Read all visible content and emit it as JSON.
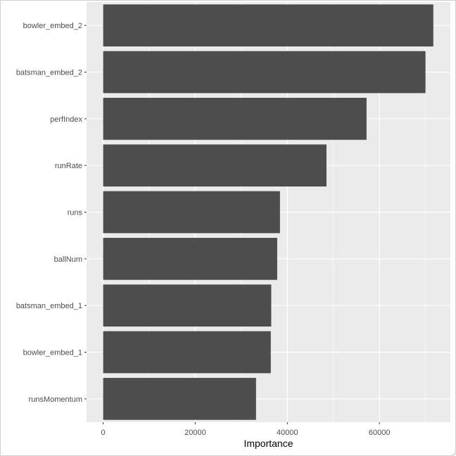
{
  "chart_data": {
    "type": "bar",
    "orientation": "horizontal",
    "categories": [
      "bowler_embed_2",
      "batsman_embed_2",
      "perfIndex",
      "runRate",
      "runs",
      "ballNum",
      "batsman_embed_1",
      "bowler_embed_1",
      "runsMomentum"
    ],
    "values": [
      71700,
      70000,
      57200,
      48500,
      38400,
      37800,
      36500,
      36400,
      33200
    ],
    "xlabel": "Importance",
    "ylabel": "",
    "xticks": [
      "0",
      "20000",
      "40000",
      "60000"
    ],
    "xlim": [
      -3600,
      75400
    ],
    "grid": true,
    "legend": "none",
    "colors": {
      "bar": "#4d4d4d",
      "panel": "#ebebeb",
      "gridline": "#ffffff"
    }
  }
}
